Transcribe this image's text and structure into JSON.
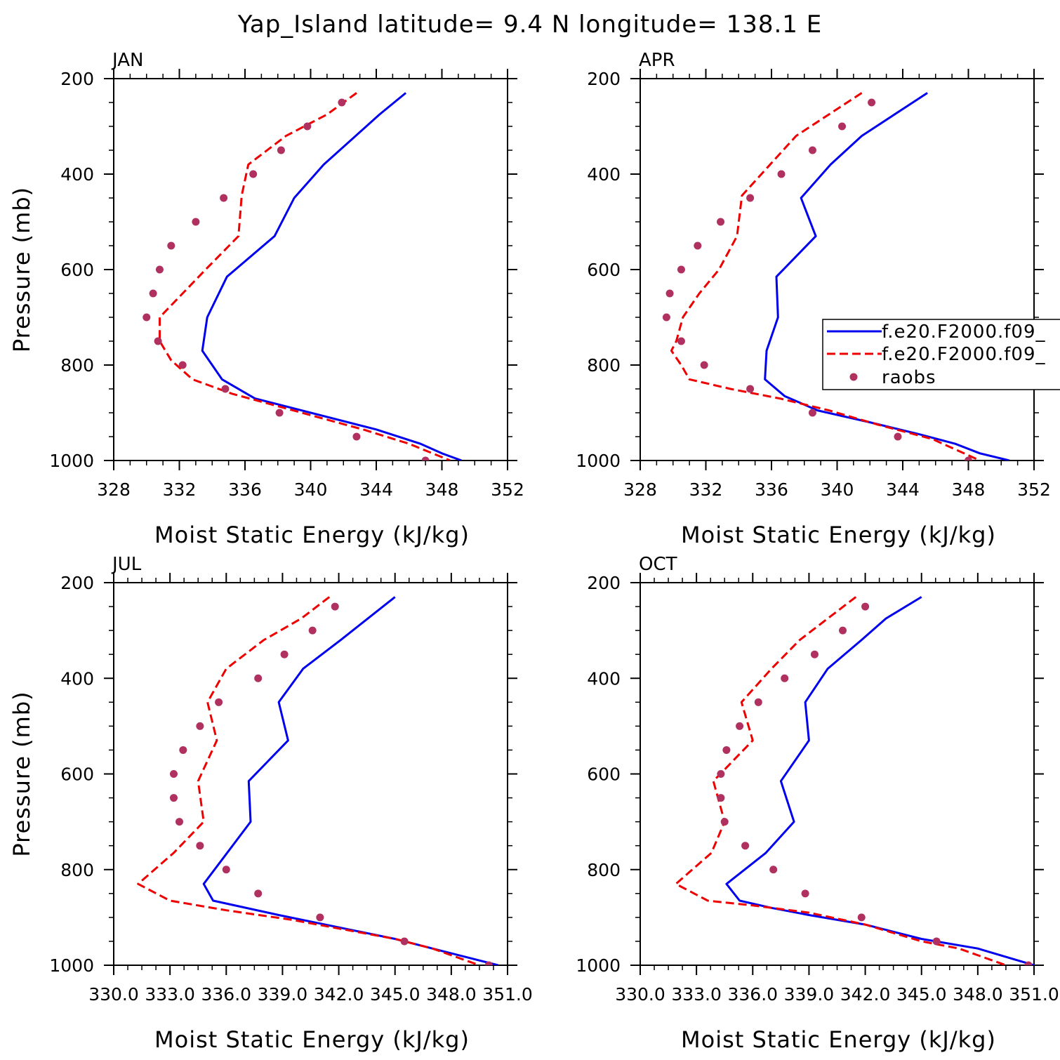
{
  "figure_title": "Yap_Island  latitude= 9.4 N longitude= 138.1 E",
  "legend": {
    "entries": [
      {
        "label": "f.e20.F2000.f09_",
        "style": "solid",
        "color": "#0000ee"
      },
      {
        "label": "f.e20.F2000.f09_",
        "style": "dashed",
        "color": "#ee0000"
      },
      {
        "label": "raobs",
        "style": "dots",
        "color": "#b03060"
      }
    ]
  },
  "colors": {
    "model_solid": "#0000ee",
    "model_dashed": "#ee0000",
    "raobs": "#b03060"
  },
  "chart_data": [
    {
      "type": "line",
      "title": "JAN",
      "xlabel": "Moist Static Energy (kJ/kg)",
      "ylabel": "Pressure (mb)",
      "xlim": [
        328,
        352
      ],
      "ylim": [
        1000,
        200
      ],
      "xticks": [
        328,
        332,
        336,
        340,
        344,
        348,
        352
      ],
      "xtick_labels": [
        "328",
        "332",
        "336",
        "340",
        "344",
        "348",
        "352"
      ],
      "yticks": [
        200,
        400,
        600,
        800,
        1000
      ],
      "ytick_labels": [
        "200",
        "400",
        "600",
        "800",
        "1000"
      ],
      "series": [
        {
          "name": "f.e20.F2000.f09_",
          "style": "solid",
          "x": [
            345.8,
            344.2,
            340.8,
            339.0,
            337.8,
            334.9,
            333.7,
            333.4,
            334.6,
            336.6,
            344.0,
            346.7,
            348.0,
            349.2
          ],
          "y": [
            230,
            275,
            380,
            450,
            530,
            615,
            700,
            770,
            830,
            870,
            935,
            965,
            985,
            1000
          ]
        },
        {
          "name": "f.e20.F2000.f09_",
          "style": "dashed",
          "x": [
            342.8,
            341.0,
            338.5,
            336.2,
            335.8,
            335.6,
            333.6,
            330.8,
            330.8,
            331.5,
            332.8,
            335.2,
            343.2,
            346.0,
            348.5
          ],
          "y": [
            230,
            275,
            320,
            380,
            445,
            530,
            600,
            700,
            750,
            790,
            830,
            860,
            935,
            965,
            1000
          ]
        },
        {
          "name": "raobs",
          "style": "dots",
          "x": [
            341.9,
            339.8,
            338.2,
            336.5,
            334.7,
            333.0,
            331.5,
            330.8,
            330.4,
            330.0,
            330.7,
            332.2,
            334.8,
            338.1,
            342.8,
            347.0
          ],
          "y": [
            250,
            300,
            350,
            400,
            450,
            500,
            550,
            600,
            650,
            700,
            750,
            800,
            850,
            900,
            950,
            1000
          ]
        }
      ]
    },
    {
      "type": "line",
      "title": "APR",
      "xlabel": "Moist Static Energy (kJ/kg)",
      "ylabel": "",
      "xlim": [
        328,
        352
      ],
      "ylim": [
        1000,
        200
      ],
      "xticks": [
        328,
        332,
        336,
        340,
        344,
        348,
        352
      ],
      "xtick_labels": [
        "328",
        "332",
        "336",
        "340",
        "344",
        "348",
        "352"
      ],
      "yticks": [
        200,
        400,
        600,
        800,
        1000
      ],
      "ytick_labels": [
        "200",
        "400",
        "600",
        "800",
        "1000"
      ],
      "series": [
        {
          "name": "f.e20.F2000.f09_",
          "style": "solid",
          "x": [
            345.5,
            341.5,
            339.6,
            337.8,
            338.7,
            336.3,
            336.4,
            335.7,
            335.6,
            336.8,
            338.8,
            342.0,
            345.0,
            347.2,
            348.7,
            350.5
          ],
          "y": [
            230,
            320,
            380,
            450,
            530,
            615,
            700,
            770,
            830,
            865,
            895,
            920,
            945,
            965,
            985,
            1000
          ]
        },
        {
          "name": "f.e20.F2000.f09_",
          "style": "dashed",
          "x": [
            341.5,
            339.5,
            337.5,
            334.2,
            333.9,
            332.8,
            331.6,
            330.6,
            330.2,
            329.9,
            330.5,
            331.0,
            333.5,
            336.5,
            339.5,
            342.5,
            345.8,
            348.7
          ],
          "y": [
            230,
            275,
            320,
            445,
            530,
            600,
            650,
            700,
            750,
            770,
            800,
            830,
            850,
            870,
            895,
            925,
            955,
            1000
          ]
        },
        {
          "name": "raobs",
          "style": "dots",
          "x": [
            342.1,
            340.3,
            338.5,
            336.6,
            334.7,
            332.9,
            331.5,
            330.5,
            329.8,
            329.6,
            330.5,
            331.9,
            334.7,
            338.5,
            343.7,
            348.0
          ],
          "y": [
            250,
            300,
            350,
            400,
            450,
            500,
            550,
            600,
            650,
            700,
            750,
            800,
            850,
            900,
            950,
            1000
          ]
        }
      ]
    },
    {
      "type": "line",
      "title": "JUL",
      "xlabel": "Moist Static Energy (kJ/kg)",
      "ylabel": "Pressure (mb)",
      "xlim": [
        330.0,
        351.0
      ],
      "ylim": [
        1000,
        200
      ],
      "xticks": [
        330.0,
        333.0,
        336.0,
        339.0,
        342.0,
        345.0,
        348.0,
        351.0
      ],
      "xtick_labels": [
        "330.0",
        "333.0",
        "336.0",
        "339.0",
        "342.0",
        "345.0",
        "348.0",
        "351.0"
      ],
      "yticks": [
        200,
        400,
        600,
        800,
        1000
      ],
      "ytick_labels": [
        "200",
        "400",
        "600",
        "800",
        "1000"
      ],
      "series": [
        {
          "name": "f.e20.F2000.f09_",
          "style": "solid",
          "x": [
            345.0,
            342.1,
            340.1,
            338.8,
            339.3,
            337.2,
            337.3,
            334.8,
            335.3,
            338.8,
            345.0,
            347.0,
            350.5
          ],
          "y": [
            230,
            320,
            380,
            450,
            530,
            615,
            700,
            830,
            865,
            895,
            945,
            965,
            1000
          ]
        },
        {
          "name": "f.e20.F2000.f09_",
          "style": "dashed",
          "x": [
            341.5,
            340.0,
            338.0,
            336.0,
            335.0,
            335.5,
            334.5,
            334.8,
            333.2,
            331.3,
            333.0,
            336.0,
            339.5,
            345.0,
            347.0,
            349.5
          ],
          "y": [
            230,
            275,
            320,
            380,
            450,
            530,
            615,
            700,
            765,
            830,
            865,
            885,
            905,
            945,
            965,
            1000
          ]
        },
        {
          "name": "raobs",
          "style": "dots",
          "x": [
            341.8,
            340.6,
            339.1,
            337.7,
            335.6,
            334.6,
            333.7,
            333.2,
            333.2,
            333.5,
            334.6,
            336.0,
            337.7,
            341.0,
            345.5,
            350.0
          ],
          "y": [
            250,
            300,
            350,
            400,
            450,
            500,
            550,
            600,
            650,
            700,
            750,
            800,
            850,
            900,
            950,
            1000
          ]
        }
      ]
    },
    {
      "type": "line",
      "title": "OCT",
      "xlabel": "Moist Static Energy (kJ/kg)",
      "ylabel": "",
      "xlim": [
        330.0,
        351.0
      ],
      "ylim": [
        1000,
        200
      ],
      "xticks": [
        330.0,
        333.0,
        336.0,
        339.0,
        342.0,
        345.0,
        348.0,
        351.0
      ],
      "xtick_labels": [
        "330.0",
        "333.0",
        "336.0",
        "339.0",
        "342.0",
        "345.0",
        "348.0",
        "351.0"
      ],
      "yticks": [
        200,
        400,
        600,
        800,
        1000
      ],
      "ytick_labels": [
        "200",
        "400",
        "600",
        "800",
        "1000"
      ],
      "series": [
        {
          "name": "f.e20.F2000.f09_",
          "style": "solid",
          "x": [
            345.0,
            343.1,
            341.8,
            340.0,
            338.8,
            339.0,
            337.5,
            338.2,
            336.7,
            334.6,
            335.3,
            337.0,
            339.0,
            342.0,
            345.0,
            348.0,
            351.0
          ],
          "y": [
            230,
            275,
            320,
            380,
            450,
            530,
            615,
            700,
            765,
            830,
            865,
            880,
            895,
            915,
            945,
            965,
            1000
          ]
        },
        {
          "name": "f.e20.F2000.f09_",
          "style": "dashed",
          "x": [
            341.5,
            340.0,
            338.5,
            337.0,
            335.4,
            336.0,
            333.9,
            334.5,
            333.8,
            331.9,
            333.6,
            336.0,
            339.0,
            342.0,
            345.0,
            347.0,
            349.5
          ],
          "y": [
            230,
            275,
            320,
            380,
            450,
            530,
            615,
            700,
            765,
            830,
            865,
            875,
            890,
            915,
            950,
            965,
            1000
          ]
        },
        {
          "name": "raobs",
          "style": "dots",
          "x": [
            342.0,
            340.8,
            339.3,
            337.7,
            336.3,
            335.3,
            334.6,
            334.3,
            334.3,
            334.5,
            335.6,
            337.1,
            338.8,
            341.8,
            345.8,
            350.7
          ],
          "y": [
            250,
            300,
            350,
            400,
            450,
            500,
            550,
            600,
            650,
            700,
            750,
            800,
            850,
            900,
            950,
            1000
          ]
        }
      ]
    }
  ]
}
